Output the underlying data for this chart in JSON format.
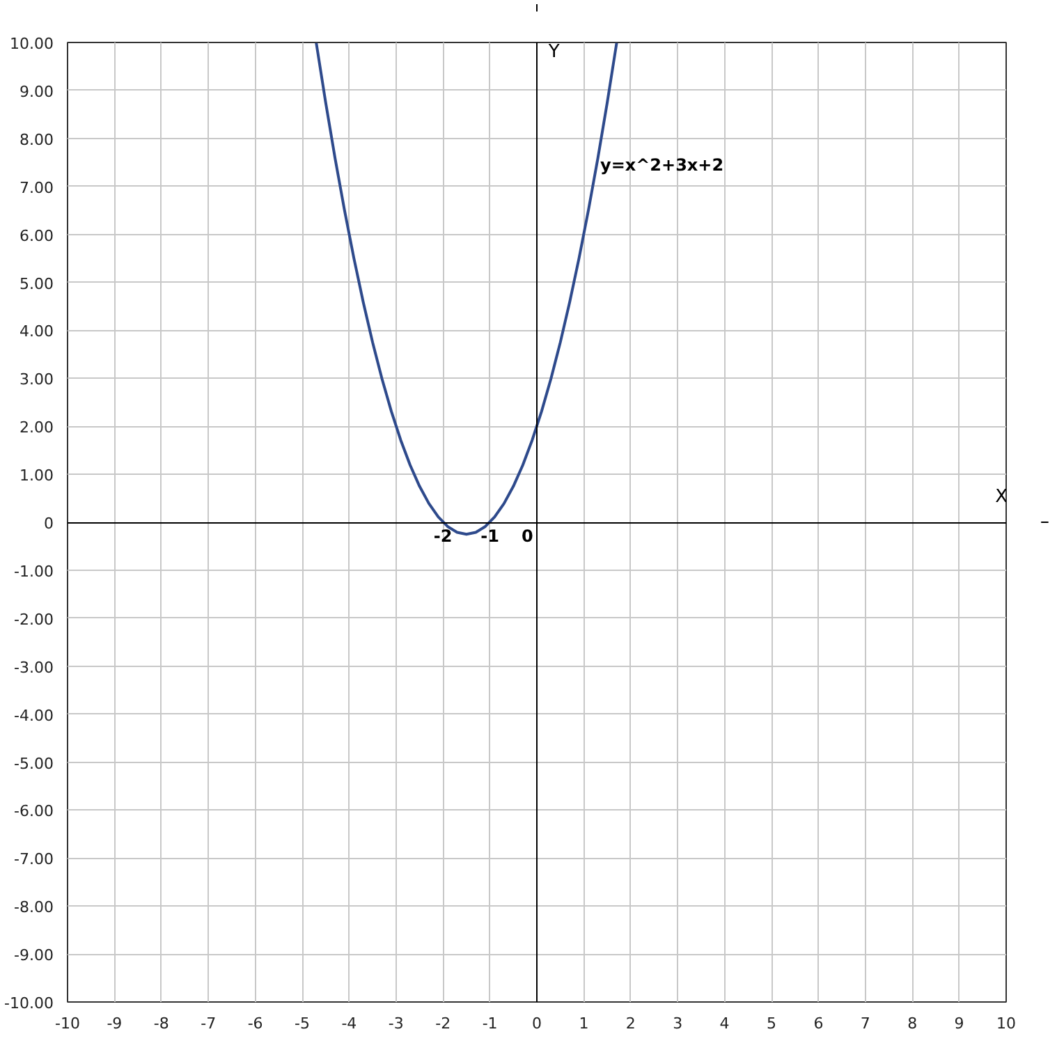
{
  "chart_data": {
    "type": "line",
    "xlabel": "X",
    "ylabel": "Y",
    "xlim": [
      -10,
      10
    ],
    "ylim": [
      -10,
      10
    ],
    "xticks": [
      -10,
      -9,
      -8,
      -7,
      -6,
      -5,
      -4,
      -3,
      -2,
      -1,
      0,
      1,
      2,
      3,
      4,
      5,
      6,
      7,
      8,
      9,
      10
    ],
    "yticks": [
      {
        "value": -10,
        "label": "-10.00"
      },
      {
        "value": -9,
        "label": "-9.00"
      },
      {
        "value": -8,
        "label": "-8.00"
      },
      {
        "value": -7,
        "label": "-7.00"
      },
      {
        "value": -6,
        "label": "-6.00"
      },
      {
        "value": -5,
        "label": "-5.00"
      },
      {
        "value": -4,
        "label": "-4.00"
      },
      {
        "value": -3,
        "label": "-3.00"
      },
      {
        "value": -2,
        "label": "-2.00"
      },
      {
        "value": -1,
        "label": "-1.00"
      },
      {
        "value": 0,
        "label": "0"
      },
      {
        "value": 1,
        "label": "1.00"
      },
      {
        "value": 2,
        "label": "2.00"
      },
      {
        "value": 3,
        "label": "3.00"
      },
      {
        "value": 4,
        "label": "4.00"
      },
      {
        "value": 5,
        "label": "5.00"
      },
      {
        "value": 6,
        "label": "6.00"
      },
      {
        "value": 7,
        "label": "7.00"
      },
      {
        "value": 8,
        "label": "8.00"
      },
      {
        "value": 9,
        "label": "9.00"
      },
      {
        "value": 10,
        "label": "10.00"
      }
    ],
    "grid": true,
    "series": [
      {
        "color": "#2e4a8c",
        "x": [
          -4.7,
          -4.5,
          -4.3,
          -4.1,
          -3.9,
          -3.7,
          -3.5,
          -3.3,
          -3.1,
          -2.9,
          -2.7,
          -2.5,
          -2.3,
          -2.1,
          -1.9,
          -1.7,
          -1.5,
          -1.3,
          -1.1,
          -0.9,
          -0.7,
          -0.5,
          -0.3,
          -0.1,
          0.1,
          0.3,
          0.5,
          0.7,
          0.9,
          1.1,
          1.3,
          1.5,
          1.7
        ],
        "values": [
          9.99,
          8.75,
          7.59,
          6.51,
          5.51,
          4.59,
          3.75,
          2.99,
          2.31,
          1.71,
          1.19,
          0.75,
          0.39,
          0.11,
          -0.09,
          -0.21,
          -0.25,
          -0.21,
          -0.09,
          0.11,
          0.39,
          0.75,
          1.19,
          1.71,
          2.31,
          2.99,
          3.75,
          4.59,
          5.51,
          6.51,
          7.59,
          8.75,
          9.99
        ]
      }
    ],
    "annotations": [
      {
        "text": "y=x^2+3x+2",
        "x": 1.35,
        "y": 7.45
      },
      {
        "text": "-2",
        "x": -2,
        "y": 0
      },
      {
        "text": "-1",
        "x": -1,
        "y": 0
      },
      "0"
    ]
  }
}
